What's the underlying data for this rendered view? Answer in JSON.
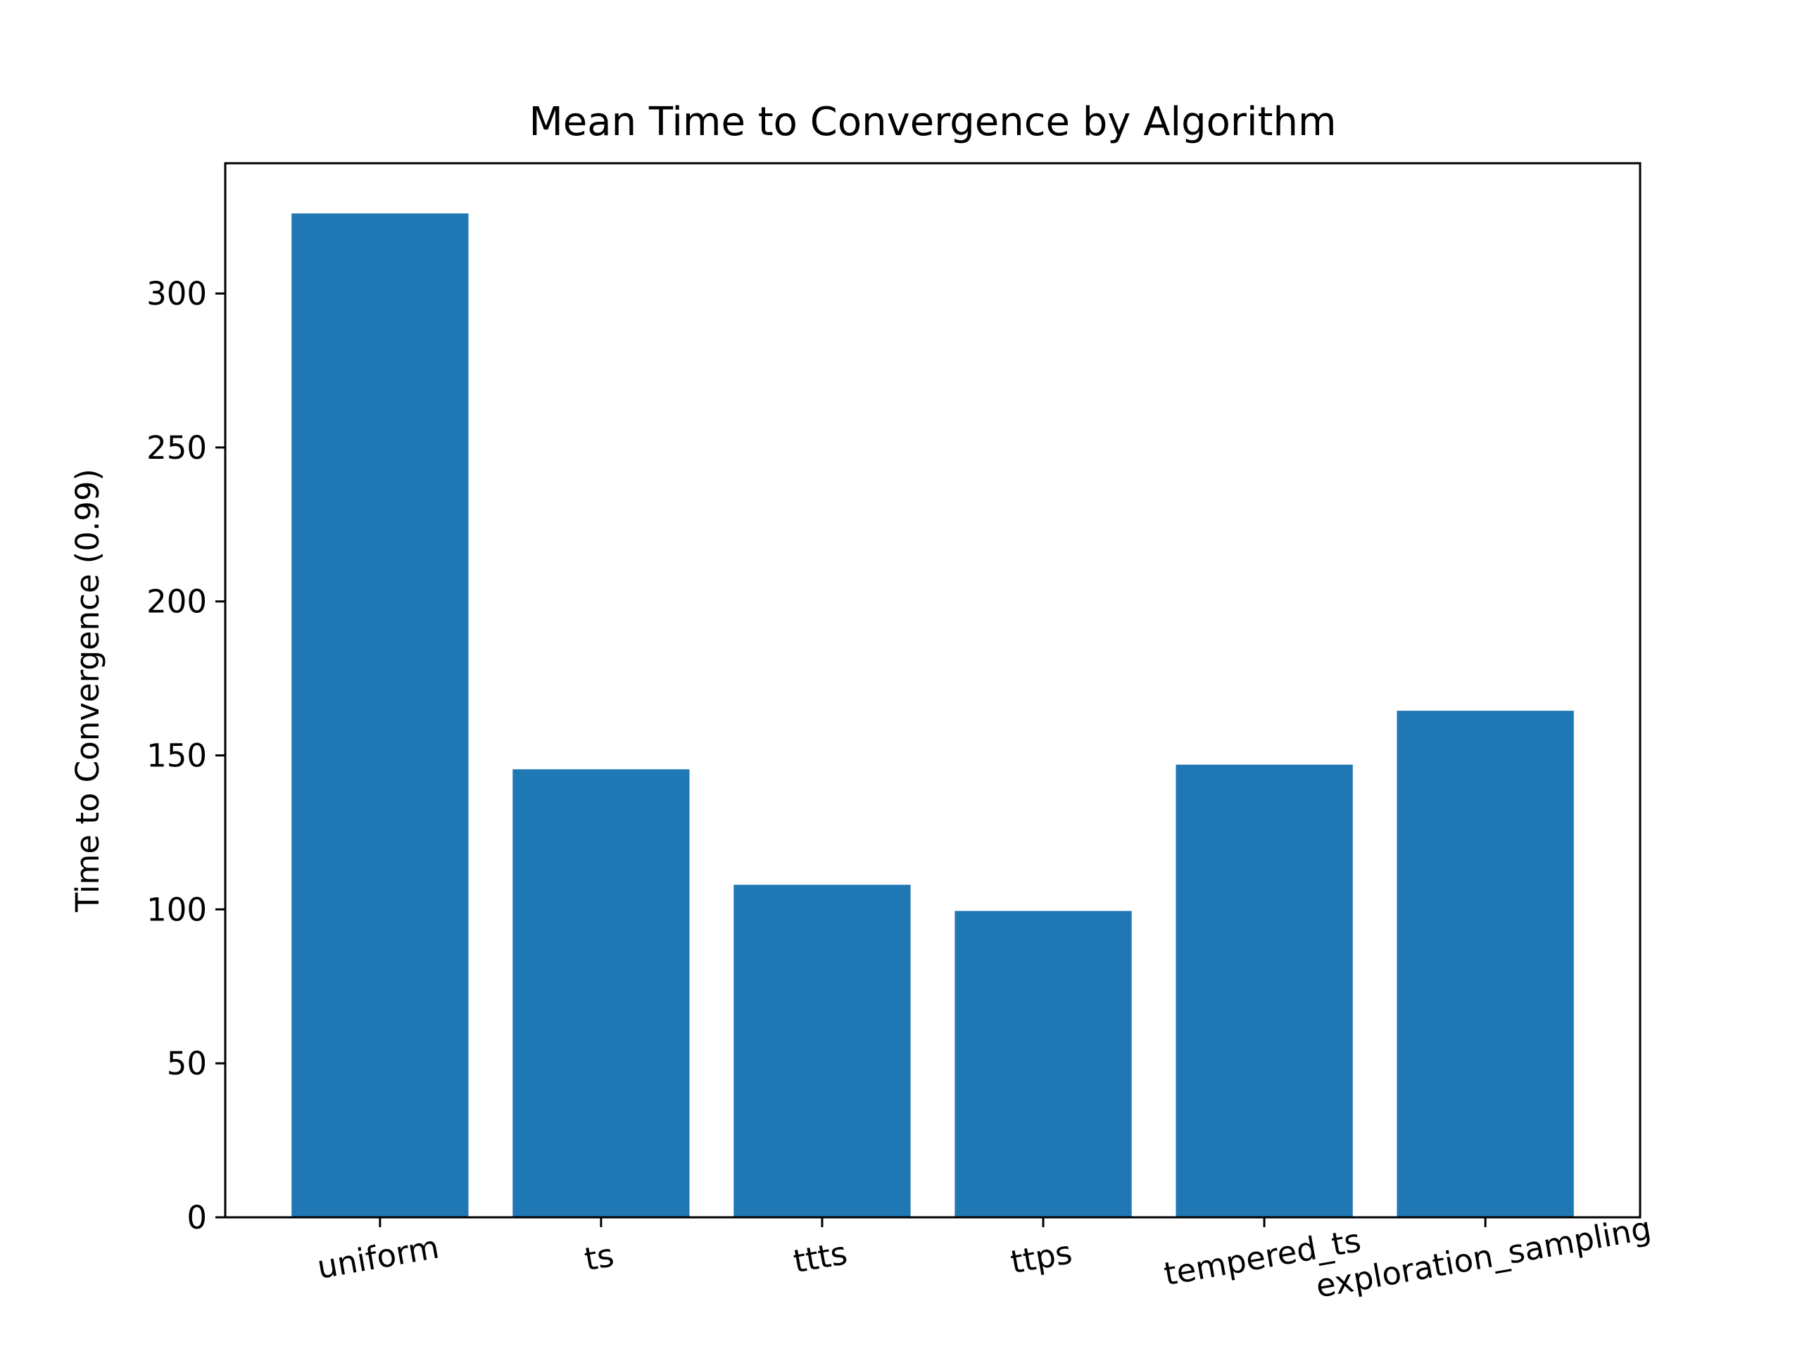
{
  "chart_data": {
    "type": "bar",
    "title": "Mean Time to Convergence by Algorithm",
    "xlabel": "",
    "ylabel": "Time to Convergence (0.99)",
    "categories": [
      "uniform",
      "ts",
      "ttts",
      "ttps",
      "tempered_ts",
      "exploration_sampling"
    ],
    "values": [
      326,
      145.5,
      108,
      99.5,
      147,
      164.5
    ],
    "ylim": [
      0,
      342.3
    ],
    "yticks": [
      0,
      50,
      100,
      150,
      200,
      250,
      300
    ],
    "grid": false,
    "legend": "none",
    "bar_color": "#1f77b4",
    "xtick_rotation_deg": -10
  }
}
